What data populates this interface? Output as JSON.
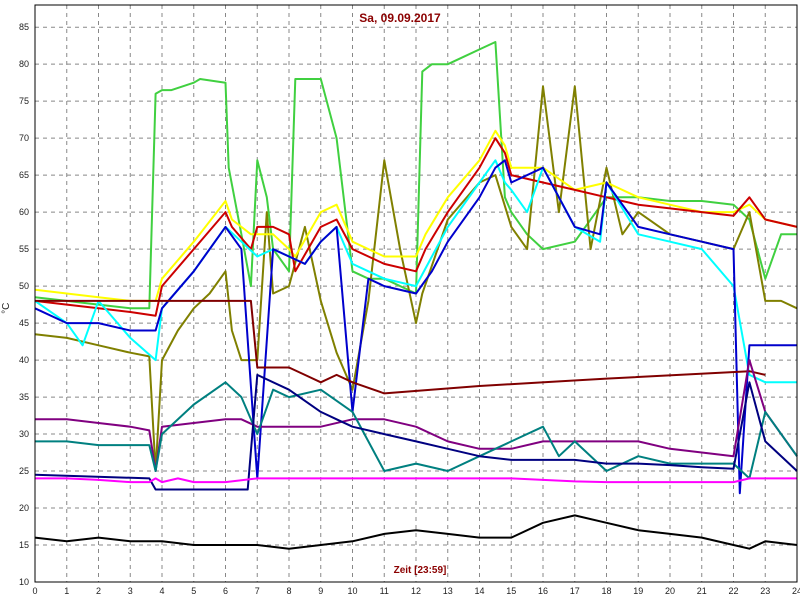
{
  "chart_data": {
    "type": "line",
    "title": "Sa, 09.09.2017",
    "xlabel": "Zeit [23:59]",
    "ylabel": "°C",
    "xlim": [
      0,
      24
    ],
    "ylim": [
      10,
      88
    ],
    "x_ticks": [
      0,
      1,
      2,
      3,
      4,
      5,
      6,
      7,
      8,
      9,
      10,
      11,
      12,
      13,
      14,
      15,
      16,
      17,
      18,
      19,
      20,
      21,
      22,
      23,
      24
    ],
    "y_ticks": [
      10,
      15,
      20,
      25,
      30,
      35,
      40,
      45,
      50,
      55,
      60,
      65,
      70,
      75,
      80,
      85
    ],
    "grid": true,
    "grid_style": "dashed",
    "title_color": "#8b0000",
    "xlabel_color": "#8b0000",
    "series": [
      {
        "color": "#40d040",
        "x": [
          0,
          1,
          2,
          3,
          3.6,
          3.8,
          4,
          4.3,
          5,
          5.2,
          6,
          6.1,
          6.5,
          6.8,
          7,
          7.3,
          7.5,
          8,
          8.2,
          8.5,
          9,
          9.5,
          10,
          10.5,
          11,
          12,
          12.2,
          12.5,
          13,
          13.5,
          14,
          14.5,
          14.8,
          15,
          15.5,
          16,
          17,
          18,
          19,
          20,
          21,
          22,
          22.5,
          23,
          23.5,
          24
        ],
        "y": [
          48.5,
          48,
          47.5,
          47,
          47,
          76,
          76.5,
          76.5,
          77.5,
          78,
          77.5,
          66,
          57,
          50,
          67,
          62,
          55,
          52,
          78,
          78,
          78,
          70,
          52,
          51,
          51,
          49,
          79,
          80,
          80,
          81,
          82,
          83,
          62,
          60,
          57,
          55,
          56,
          62,
          62,
          61.5,
          61.5,
          61,
          59,
          51,
          57,
          57
        ]
      },
      {
        "color": "#808000",
        "x": [
          0,
          1,
          2,
          3,
          3.6,
          3.8,
          4,
          4.5,
          5,
          5.5,
          6,
          6.2,
          6.5,
          7,
          7.3,
          7.5,
          8,
          8.5,
          9,
          9.5,
          10,
          10.5,
          11,
          11.5,
          12,
          12.2,
          13,
          14,
          14.5,
          15,
          15.5,
          16,
          16.5,
          17,
          17.5,
          18,
          18.5,
          19,
          20,
          21,
          22,
          22.5,
          23,
          23.5,
          24
        ],
        "y": [
          43.5,
          43,
          42,
          41,
          40.5,
          25,
          40,
          44,
          47,
          49,
          52,
          44,
          40,
          40,
          60,
          49,
          50,
          58,
          48,
          41,
          36,
          48,
          67,
          55,
          45,
          49,
          59,
          64,
          65,
          58,
          55,
          77,
          60,
          77,
          55,
          66,
          57,
          60,
          57,
          56,
          55,
          60,
          48,
          48,
          47
        ]
      },
      {
        "color": "#ffff00",
        "x": [
          0,
          1,
          2,
          3,
          3.8,
          4,
          5,
          6,
          6.2,
          6.8,
          7,
          7.5,
          8,
          8.2,
          9,
          9.5,
          10,
          10.5,
          11,
          12,
          12.3,
          13,
          14,
          14.5,
          14.8,
          15,
          16,
          17,
          18,
          19,
          20,
          21,
          22,
          22.5,
          23,
          24
        ],
        "y": [
          49.5,
          49,
          48.5,
          48,
          48,
          51,
          56,
          61.5,
          59,
          57,
          57,
          57,
          55,
          54,
          60,
          61,
          56,
          55,
          54,
          54,
          57,
          62,
          67,
          71,
          69,
          66,
          66,
          63,
          64,
          62,
          61,
          60,
          60,
          61,
          59,
          58
        ]
      },
      {
        "color": "#cc0000",
        "x": [
          0,
          1,
          2,
          3,
          3.8,
          4,
          5,
          6,
          6.2,
          6.8,
          7,
          7.5,
          8,
          8.2,
          9,
          9.5,
          10,
          10.5,
          11,
          12,
          12.3,
          13,
          14,
          14.5,
          14.8,
          15,
          16,
          17,
          18,
          19,
          20,
          21,
          22,
          22.5,
          23,
          24
        ],
        "y": [
          48,
          47.5,
          47,
          46.5,
          46,
          50,
          55,
          60,
          58,
          55,
          58,
          58,
          57,
          52,
          58,
          59,
          55,
          54,
          53,
          52,
          55,
          60,
          66,
          70,
          68,
          65,
          64,
          63,
          62,
          61,
          60.5,
          60,
          59.5,
          62,
          59,
          58
        ]
      },
      {
        "color": "#00ffff",
        "x": [
          0,
          1,
          1.5,
          2,
          3,
          3.8,
          4,
          5,
          6,
          6.5,
          7,
          7.5,
          8,
          8.5,
          9,
          9.5,
          10,
          10.5,
          11,
          12,
          12.5,
          13,
          14,
          14.5,
          14.8,
          15,
          15.5,
          16,
          17,
          17.8,
          18,
          19,
          20,
          21,
          22,
          22.5,
          23,
          24
        ],
        "y": [
          48,
          45,
          42,
          48,
          43,
          40,
          47,
          52,
          58,
          56,
          54,
          55,
          54,
          53,
          56,
          58,
          53,
          52,
          51,
          50,
          54,
          58,
          64,
          67,
          64,
          63,
          60,
          66,
          58,
          56,
          64,
          57,
          56,
          55,
          50,
          38,
          37,
          37
        ]
      },
      {
        "color": "#0000cc",
        "x": [
          0,
          1,
          2,
          3,
          3.8,
          4,
          5,
          6,
          6.5,
          7,
          7.5,
          8,
          8.5,
          9,
          9.5,
          10,
          10.5,
          11,
          12,
          12.5,
          13,
          14,
          14.5,
          14.8,
          15,
          16,
          17,
          17.8,
          18,
          19,
          20,
          21,
          22,
          22.2,
          22.5,
          23,
          24
        ],
        "y": [
          47,
          45,
          45,
          44,
          44,
          47,
          52,
          58,
          55,
          24,
          55,
          54,
          53,
          56,
          58,
          33,
          51,
          50,
          49,
          52,
          56,
          62,
          66,
          67,
          64,
          66,
          58,
          57,
          64,
          58,
          57,
          56,
          55,
          22,
          42,
          42,
          42
        ]
      },
      {
        "color": "#800000",
        "x": [
          0,
          3.8,
          4,
          6.8,
          7,
          8,
          8.5,
          9,
          9.5,
          10,
          11,
          14,
          18,
          22.5,
          23
        ],
        "y": [
          48,
          48,
          48,
          48,
          39,
          39,
          38,
          37,
          38,
          37,
          35.5,
          36.5,
          37.5,
          38.5,
          38
        ]
      },
      {
        "color": "#800080",
        "x": [
          0,
          1,
          2,
          3,
          3.6,
          3.8,
          4,
          6,
          6.5,
          7,
          8,
          9,
          10,
          11,
          12,
          13,
          14,
          15,
          16,
          17,
          18,
          19,
          20,
          21,
          22,
          22.5,
          23,
          24
        ],
        "y": [
          32,
          32,
          31.5,
          31,
          30.5,
          25,
          31,
          32,
          32,
          31,
          31,
          31,
          32,
          32,
          31,
          29,
          28,
          28,
          29,
          29,
          29,
          29,
          28,
          27.5,
          27,
          40,
          33,
          27
        ]
      },
      {
        "color": "#008080",
        "x": [
          0,
          1,
          2,
          3,
          3.6,
          3.8,
          4,
          5,
          6,
          6.5,
          7,
          7.5,
          8,
          9,
          10,
          11,
          12,
          13,
          14,
          15,
          16,
          16.5,
          17,
          18,
          19,
          20,
          21,
          22,
          22.5,
          23,
          24
        ],
        "y": [
          29,
          29,
          28.5,
          28.5,
          28.5,
          25,
          30,
          34,
          37,
          35,
          30,
          36,
          35,
          36,
          33,
          25,
          26,
          25,
          27,
          29,
          31,
          27,
          29,
          25,
          27,
          26,
          26,
          26,
          24,
          33,
          27
        ]
      },
      {
        "color": "#000080",
        "x": [
          0,
          3.6,
          3.8,
          6,
          6.7,
          7,
          8,
          9,
          9.5,
          10,
          11,
          12,
          13,
          14,
          15,
          16,
          17,
          18,
          19,
          20,
          21,
          22,
          22.5,
          23,
          24
        ],
        "y": [
          24.5,
          24,
          22.5,
          22.5,
          22.5,
          38,
          36,
          33,
          32,
          31,
          30,
          29,
          28,
          27,
          26.5,
          26.5,
          26.5,
          26,
          26,
          25.8,
          25.5,
          25.3,
          37,
          29,
          25
        ]
      },
      {
        "color": "#ff00ff",
        "x": [
          0,
          1,
          2,
          3,
          3.6,
          3.8,
          4,
          4.5,
          5,
          6,
          7,
          8,
          9,
          10,
          11,
          12,
          13,
          14,
          15,
          16,
          17,
          18,
          19,
          20,
          21,
          22,
          22.5,
          23,
          24
        ],
        "y": [
          24,
          24,
          23.8,
          23.5,
          23.5,
          24,
          23.5,
          24,
          23.5,
          23.5,
          24,
          24,
          24,
          24,
          24,
          24,
          24,
          24,
          24,
          23.8,
          23.6,
          23.5,
          23.5,
          23.5,
          23.5,
          23.5,
          24,
          24,
          24
        ]
      },
      {
        "color": "#000000",
        "x": [
          0,
          1,
          2,
          3,
          4,
          5,
          6,
          7,
          8,
          9,
          10,
          11,
          12,
          13,
          14,
          15,
          16,
          17,
          18,
          19,
          20,
          21,
          22,
          22.5,
          23,
          24
        ],
        "y": [
          16,
          15.5,
          16,
          15.5,
          15.5,
          15,
          15,
          15,
          14.5,
          15,
          15.5,
          16.5,
          17,
          16.5,
          16,
          16,
          18,
          19,
          18,
          17,
          16.5,
          16,
          15,
          14.5,
          15.5,
          15
        ]
      }
    ]
  }
}
